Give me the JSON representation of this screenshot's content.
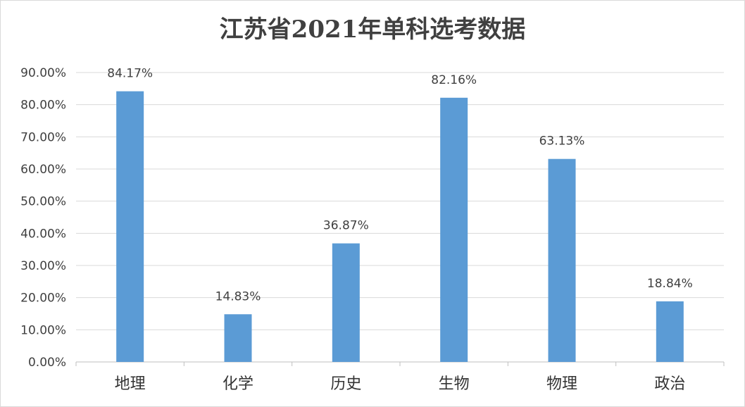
{
  "chart_data": {
    "type": "bar",
    "title": "江苏省2021年单科选考数据",
    "categories": [
      "地理",
      "化学",
      "历史",
      "生物",
      "物理",
      "政治"
    ],
    "values": [
      84.17,
      14.83,
      36.87,
      82.16,
      63.13,
      18.84
    ],
    "data_labels": [
      "84.17%",
      "14.83%",
      "36.87%",
      "82.16%",
      "63.13%",
      "18.84%"
    ],
    "y_ticks": [
      "0.00%",
      "10.00%",
      "20.00%",
      "30.00%",
      "40.00%",
      "50.00%",
      "60.00%",
      "70.00%",
      "80.00%",
      "90.00%"
    ],
    "ylim": [
      0,
      90
    ],
    "grid": true,
    "legend": "none",
    "xlabel": "",
    "ylabel": "",
    "colors": {
      "bar": "#5b9bd5",
      "grid": "#d9d9d9",
      "text": "#404040"
    }
  }
}
